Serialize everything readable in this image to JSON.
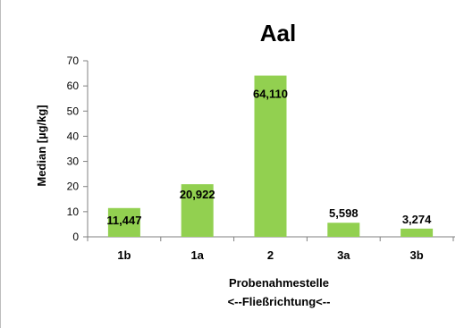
{
  "chart_data": {
    "type": "bar",
    "title": "Aal",
    "ylabel": "Median [µg/kg]",
    "xlabel": "Probenahmestelle",
    "xlabel2": "<--Fließrichtung<--",
    "categories": [
      "1b",
      "1a",
      "2",
      "3a",
      "3b"
    ],
    "values": [
      11.447,
      20.922,
      64.11,
      5.598,
      3.274
    ],
    "data_labels": [
      "11,447",
      "20,922",
      "64,110",
      "5,598",
      "3,274"
    ],
    "ylim": [
      0,
      70
    ],
    "yticks": [
      0,
      10,
      20,
      30,
      40,
      50,
      60,
      70
    ],
    "grid": false,
    "bar_color": "#92d050"
  }
}
